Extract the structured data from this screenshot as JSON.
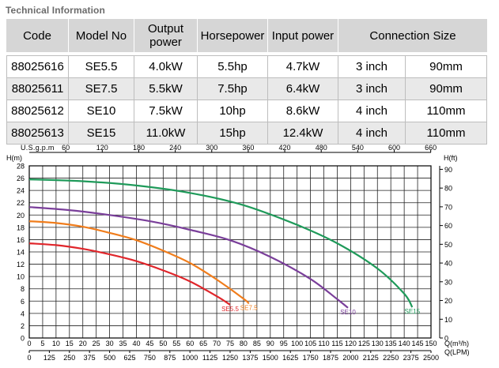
{
  "section_title": "Technical Information",
  "table": {
    "headers": {
      "code": "Code",
      "model": "Model No",
      "output": "Output power",
      "hp": "Horsepower",
      "input": "Input power",
      "connection": "Connection Size"
    },
    "rows": [
      {
        "code": "88025616",
        "model": "SE5.5",
        "output": "4.0kW",
        "hp": "5.5hp",
        "input": "4.7kW",
        "conn_inch": "3 inch",
        "conn_mm": "90mm"
      },
      {
        "code": "88025611",
        "model": "SE7.5",
        "output": "5.5kW",
        "hp": "7.5hp",
        "input": "6.4kW",
        "conn_inch": "3 inch",
        "conn_mm": "90mm"
      },
      {
        "code": "88025612",
        "model": "SE10",
        "output": "7.5kW",
        "hp": "10hp",
        "input": "8.6kW",
        "conn_inch": "4 inch",
        "conn_mm": "110mm"
      },
      {
        "code": "88025613",
        "model": "SE15",
        "output": "11.0kW",
        "hp": "15hp",
        "input": "12.4kW",
        "conn_inch": "4 inch",
        "conn_mm": "110mm"
      }
    ]
  },
  "chart_data": {
    "type": "line",
    "x_unit_label": "Q(m³/h)",
    "x2_unit_label": "Q(LPM)",
    "top_unit_label": "U.S.g.p.m",
    "y_left_label": "H(m)",
    "y_right_label": "H(ft)",
    "xlim": [
      0,
      150
    ],
    "ylim": [
      0,
      28
    ],
    "x_ticks": [
      0,
      5,
      10,
      15,
      20,
      25,
      30,
      35,
      40,
      45,
      50,
      55,
      60,
      65,
      70,
      75,
      80,
      85,
      90,
      95,
      100,
      105,
      110,
      115,
      120,
      125,
      130,
      135,
      140,
      145,
      150
    ],
    "y_ticks": [
      0,
      2,
      4,
      6,
      8,
      10,
      12,
      14,
      16,
      18,
      20,
      22,
      24,
      26,
      28
    ],
    "lpm_ticks": [
      "0",
      "125",
      "250",
      "375",
      "500",
      "625",
      "750",
      "875",
      "1000",
      "1125",
      "1250",
      "1375",
      "1500",
      "1625",
      "1750",
      "1875",
      "2000",
      "2125",
      "2250",
      "2375",
      "2500"
    ],
    "gpm_ticks": [
      "60",
      "120",
      "180",
      "240",
      "300",
      "360",
      "420",
      "480",
      "540",
      "600",
      "660"
    ],
    "ft_ticks": [
      "0",
      "10",
      "20",
      "30",
      "40",
      "50",
      "60",
      "70",
      "80",
      "90"
    ],
    "grid": true,
    "series": [
      {
        "name": "SE5.5",
        "color": "#e0262b",
        "x": [
          0,
          10,
          20,
          30,
          40,
          50,
          60,
          70,
          75
        ],
        "y": [
          15.4,
          15.1,
          14.5,
          13.6,
          12.5,
          11.0,
          9.2,
          6.8,
          5.4
        ]
      },
      {
        "name": "SE7.5",
        "color": "#f07d1c",
        "x": [
          0,
          10,
          20,
          30,
          40,
          50,
          60,
          70,
          80,
          82
        ],
        "y": [
          19.0,
          18.7,
          18.1,
          17.1,
          15.9,
          14.2,
          12.2,
          9.5,
          6.4,
          5.6
        ]
      },
      {
        "name": "SE10",
        "color": "#7a3f9a",
        "x": [
          0,
          15,
          30,
          45,
          60,
          75,
          90,
          105,
          115,
          119
        ],
        "y": [
          21.3,
          20.8,
          20.0,
          19.0,
          17.6,
          15.9,
          13.2,
          9.6,
          6.3,
          4.9
        ]
      },
      {
        "name": "SE15",
        "color": "#1f9a5a",
        "x": [
          0,
          20,
          40,
          60,
          80,
          100,
          115,
          130,
          140,
          143
        ],
        "y": [
          25.8,
          25.5,
          24.8,
          23.6,
          21.6,
          18.4,
          15.4,
          11.3,
          7.2,
          5.0
        ]
      }
    ]
  }
}
